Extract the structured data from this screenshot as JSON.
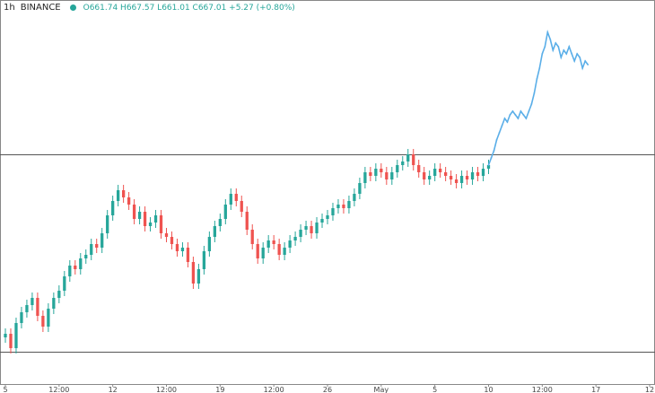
{
  "header": {
    "interval": "1h",
    "exchange": "BINANCE",
    "ohlc": "O661.74  H667.57  L661.01  C667.01  +5.27  (+0.80%)"
  },
  "colors": {
    "up": "#26a69a",
    "down": "#ef5350",
    "line": "#5aaee8",
    "level": "#555555",
    "status_dot": "#26a69a",
    "ohlc_text": "#26a69a"
  },
  "chart_data": {
    "type": "line",
    "title": "",
    "xlabel": "",
    "ylabel": "",
    "x_ticks": [
      "5",
      "12:00",
      "12",
      "12:00",
      "19",
      "12:00",
      "26",
      "May",
      "5",
      "10",
      "12:00",
      "17",
      "12"
    ],
    "x_tick_positions": [
      0,
      10,
      20,
      30,
      40,
      50,
      60,
      70,
      80,
      90,
      100,
      110,
      120
    ],
    "xlim": [
      0,
      120
    ],
    "ylim": [
      0,
      100
    ],
    "grid": false,
    "legend": "none",
    "horizontal_levels": [
      62,
      7
    ],
    "series": [
      {
        "style": "candlestick",
        "points": [
          [
            0,
            12
          ],
          [
            1,
            8
          ],
          [
            2,
            15
          ],
          [
            3,
            18
          ],
          [
            4,
            20
          ],
          [
            5,
            22
          ],
          [
            6,
            17
          ],
          [
            7,
            14
          ],
          [
            8,
            19
          ],
          [
            9,
            22
          ],
          [
            10,
            24
          ],
          [
            11,
            28
          ],
          [
            12,
            31
          ],
          [
            13,
            30
          ],
          [
            14,
            33
          ],
          [
            15,
            34
          ],
          [
            16,
            37
          ],
          [
            17,
            36
          ],
          [
            18,
            40
          ],
          [
            19,
            45
          ],
          [
            20,
            49
          ],
          [
            21,
            52
          ],
          [
            22,
            50
          ],
          [
            23,
            48
          ],
          [
            24,
            44
          ],
          [
            25,
            46
          ],
          [
            26,
            42
          ],
          [
            27,
            43
          ],
          [
            28,
            45
          ],
          [
            29,
            40
          ],
          [
            30,
            39
          ],
          [
            31,
            37
          ],
          [
            32,
            35
          ],
          [
            33,
            36
          ],
          [
            34,
            32
          ],
          [
            35,
            26
          ],
          [
            36,
            30
          ],
          [
            37,
            35
          ],
          [
            38,
            39
          ],
          [
            39,
            42
          ],
          [
            40,
            44
          ],
          [
            41,
            48
          ],
          [
            42,
            51
          ],
          [
            43,
            49
          ],
          [
            44,
            46
          ],
          [
            45,
            41
          ],
          [
            46,
            37
          ],
          [
            47,
            33
          ],
          [
            48,
            36
          ],
          [
            49,
            38
          ],
          [
            50,
            37
          ],
          [
            51,
            34
          ],
          [
            52,
            36
          ],
          [
            53,
            38
          ],
          [
            54,
            39
          ],
          [
            55,
            41
          ],
          [
            56,
            42
          ],
          [
            57,
            40
          ],
          [
            58,
            43
          ],
          [
            59,
            44
          ],
          [
            60,
            45
          ],
          [
            61,
            47
          ],
          [
            62,
            48
          ],
          [
            63,
            47
          ],
          [
            64,
            49
          ],
          [
            65,
            51
          ],
          [
            66,
            54
          ],
          [
            67,
            57
          ],
          [
            68,
            56
          ],
          [
            69,
            58
          ],
          [
            70,
            57
          ],
          [
            71,
            55
          ],
          [
            72,
            57
          ],
          [
            73,
            59
          ],
          [
            74,
            60
          ],
          [
            75,
            62
          ],
          [
            76,
            59
          ],
          [
            77,
            57
          ],
          [
            78,
            55
          ],
          [
            79,
            56
          ],
          [
            80,
            58
          ],
          [
            81,
            57
          ],
          [
            82,
            56
          ],
          [
            83,
            55
          ],
          [
            84,
            54
          ],
          [
            85,
            56
          ],
          [
            86,
            55
          ],
          [
            87,
            57
          ],
          [
            88,
            56
          ],
          [
            89,
            58
          ],
          [
            90,
            59
          ]
        ]
      },
      {
        "style": "line",
        "points": [
          [
            90,
            59
          ],
          [
            90.5,
            61
          ],
          [
            91,
            63
          ],
          [
            91.5,
            66
          ],
          [
            92,
            68
          ],
          [
            92.5,
            70
          ],
          [
            93,
            72
          ],
          [
            93.5,
            71
          ],
          [
            94,
            73
          ],
          [
            94.5,
            74
          ],
          [
            95,
            73
          ],
          [
            95.5,
            72
          ],
          [
            96,
            74
          ],
          [
            96.5,
            73
          ],
          [
            97,
            72
          ],
          [
            97.5,
            74
          ],
          [
            98,
            76
          ],
          [
            98.5,
            79
          ],
          [
            99,
            83
          ],
          [
            99.5,
            86
          ],
          [
            100,
            90
          ],
          [
            100.5,
            92
          ],
          [
            101,
            96
          ],
          [
            101.5,
            94
          ],
          [
            102,
            91
          ],
          [
            102.5,
            93
          ],
          [
            103,
            92
          ],
          [
            103.5,
            89
          ],
          [
            104,
            91
          ],
          [
            104.5,
            90
          ],
          [
            105,
            92
          ],
          [
            105.5,
            90
          ],
          [
            106,
            88
          ],
          [
            106.5,
            90
          ],
          [
            107,
            89
          ],
          [
            107.5,
            86
          ],
          [
            108,
            88
          ],
          [
            108.5,
            87
          ]
        ]
      }
    ]
  }
}
